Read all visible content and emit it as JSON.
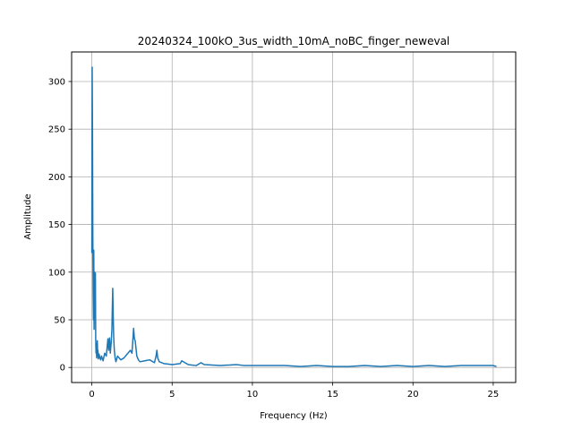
{
  "chart_data": {
    "type": "line",
    "title": "20240324_100kO_3us_width_10mA_noBC_finger_neweval",
    "xlabel": "Frequency (Hz)",
    "ylabel": "Amplitude",
    "xlim": [
      -1.26,
      26.4
    ],
    "ylim": [
      -15.8,
      331
    ],
    "grid": true,
    "xticks": [
      0,
      5,
      10,
      15,
      20,
      25
    ],
    "xtick_labels": [
      "0",
      "5",
      "10",
      "15",
      "20",
      "25"
    ],
    "yticks": [
      0,
      50,
      100,
      150,
      200,
      250,
      300
    ],
    "ytick_labels": [
      "0",
      "50",
      "100",
      "150",
      "200",
      "250",
      "300"
    ],
    "series": [
      {
        "color": "#1f77b4",
        "x": [
          0,
          0.02,
          0.04,
          0.06,
          0.08,
          0.1,
          0.12,
          0.14,
          0.16,
          0.18,
          0.2,
          0.22,
          0.24,
          0.26,
          0.28,
          0.3,
          0.32,
          0.34,
          0.36,
          0.38,
          0.4,
          0.45,
          0.5,
          0.55,
          0.6,
          0.7,
          0.8,
          0.9,
          1.0,
          1.05,
          1.1,
          1.15,
          1.2,
          1.25,
          1.3,
          1.33,
          1.36,
          1.4,
          1.45,
          1.5,
          1.6,
          1.8,
          2.0,
          2.2,
          2.4,
          2.5,
          2.6,
          2.65,
          2.7,
          2.75,
          2.8,
          2.9,
          3.0,
          3.3,
          3.6,
          3.9,
          4.0,
          4.05,
          4.1,
          4.2,
          4.5,
          5.0,
          5.5,
          5.6,
          6.0,
          6.5,
          6.8,
          7.0,
          8.0,
          9.0,
          9.5,
          10.0,
          11.0,
          12.0,
          13.0,
          14.0,
          15.0,
          16.0,
          17.0,
          18.0,
          19.0,
          20.0,
          21.0,
          22.0,
          23.0,
          24.0,
          25.0,
          25.2
        ],
        "values": [
          120,
          315,
          250,
          140,
          80,
          50,
          123,
          40,
          70,
          100,
          55,
          99,
          30,
          15,
          25,
          10,
          20,
          28,
          12,
          18,
          9,
          14,
          10,
          8,
          12,
          7,
          15,
          12,
          30,
          18,
          31,
          15,
          25,
          40,
          83,
          55,
          32,
          18,
          10,
          6,
          12,
          8,
          10,
          14,
          18,
          15,
          41,
          30,
          28,
          20,
          12,
          8,
          6,
          7,
          8,
          5,
          12,
          18,
          10,
          6,
          4,
          3,
          4,
          7,
          3,
          2,
          5,
          3,
          2,
          3,
          2,
          2,
          2,
          2,
          1,
          2,
          1,
          1,
          2,
          1,
          2,
          1,
          2,
          1,
          2,
          2,
          2,
          1
        ]
      }
    ]
  }
}
